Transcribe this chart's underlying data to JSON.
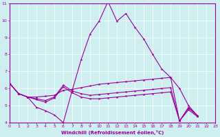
{
  "xlabel": "Windchill (Refroidissement éolien,°C)",
  "background_color": "#ceeef0",
  "line_color": "#990099",
  "grid_color": "#ffffff",
  "xlim": [
    0,
    23
  ],
  "ylim": [
    4,
    11
  ],
  "xticks": [
    0,
    1,
    2,
    3,
    4,
    5,
    6,
    7,
    8,
    9,
    10,
    11,
    12,
    13,
    14,
    15,
    16,
    17,
    18,
    19,
    20,
    21,
    22,
    23
  ],
  "yticks": [
    4,
    5,
    6,
    7,
    8,
    9,
    10,
    11
  ],
  "s1_x": [
    0,
    1,
    2,
    3,
    4,
    5,
    6,
    7,
    8,
    9,
    10,
    11,
    12,
    13,
    14,
    15,
    16,
    17,
    18,
    19,
    20,
    21,
    22
  ],
  "s1_y": [
    6.3,
    5.7,
    5.5,
    4.9,
    4.7,
    4.45,
    4.0,
    5.9,
    7.7,
    9.2,
    9.95,
    11.1,
    9.95,
    10.4,
    9.6,
    8.9,
    8.0,
    7.15,
    6.65,
    4.1,
    4.9,
    4.4,
    null
  ],
  "s2_x": [
    0,
    1,
    2,
    3,
    4,
    5,
    6,
    7,
    8,
    9,
    10,
    11,
    12,
    13,
    14,
    15,
    16,
    17,
    18,
    19,
    20,
    21,
    22
  ],
  "s2_y": [
    6.3,
    5.7,
    5.5,
    5.5,
    5.55,
    5.6,
    5.9,
    5.95,
    6.05,
    6.15,
    6.25,
    6.3,
    6.35,
    6.4,
    6.45,
    6.5,
    6.55,
    6.6,
    6.65,
    6.0,
    5.0,
    4.4,
    null
  ],
  "s3_x": [
    0,
    1,
    2,
    3,
    4,
    5,
    6,
    7,
    8,
    9,
    10,
    11,
    12,
    13,
    14,
    15,
    16,
    17,
    18,
    19,
    20,
    21,
    22
  ],
  "s3_y": [
    6.3,
    5.7,
    5.5,
    5.4,
    5.3,
    5.5,
    6.2,
    5.85,
    5.7,
    5.6,
    5.65,
    5.7,
    5.75,
    5.8,
    5.85,
    5.9,
    5.95,
    6.0,
    6.05,
    4.1,
    4.85,
    4.4,
    null
  ],
  "s4_x": [
    0,
    1,
    2,
    3,
    4,
    5,
    6,
    7,
    8,
    9,
    10,
    11,
    12,
    13,
    14,
    15,
    16,
    17,
    18,
    19,
    20,
    21,
    22
  ],
  "s4_y": [
    6.3,
    5.7,
    5.5,
    5.35,
    5.2,
    5.45,
    6.1,
    5.75,
    5.5,
    5.4,
    5.4,
    5.45,
    5.5,
    5.55,
    5.6,
    5.65,
    5.7,
    5.75,
    5.8,
    4.1,
    4.75,
    4.35,
    null
  ]
}
